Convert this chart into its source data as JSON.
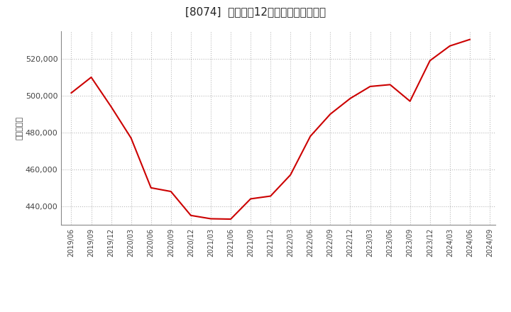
{
  "title": "[8074]  売上高の12か月移動合計の推移",
  "ylabel": "（百万円）",
  "line_color": "#cc0000",
  "background_color": "#ffffff",
  "plot_bg_color": "#ffffff",
  "grid_color": "#bbbbbb",
  "dates": [
    "2019/06",
    "2019/09",
    "2019/12",
    "2020/03",
    "2020/06",
    "2020/09",
    "2020/12",
    "2021/03",
    "2021/06",
    "2021/09",
    "2021/12",
    "2022/03",
    "2022/06",
    "2022/09",
    "2022/12",
    "2023/03",
    "2023/06",
    "2023/09",
    "2023/12",
    "2024/03",
    "2024/06"
  ],
  "values": [
    501500,
    510000,
    494000,
    477000,
    450000,
    448000,
    435000,
    433200,
    433000,
    444000,
    445500,
    457000,
    478000,
    490000,
    498500,
    505000,
    506000,
    497000,
    519000,
    527000,
    530500
  ],
  "xtick_labels": [
    "2019/06",
    "2019/09",
    "2019/12",
    "2020/03",
    "2020/06",
    "2020/09",
    "2020/12",
    "2021/03",
    "2021/06",
    "2021/09",
    "2021/12",
    "2022/03",
    "2022/06",
    "2022/09",
    "2022/12",
    "2023/03",
    "2023/06",
    "2023/09",
    "2023/12",
    "2024/03",
    "2024/06",
    "2024/09"
  ],
  "ylim_min": 430000,
  "ylim_max": 535000,
  "ytick_values": [
    440000,
    460000,
    480000,
    500000,
    520000
  ]
}
